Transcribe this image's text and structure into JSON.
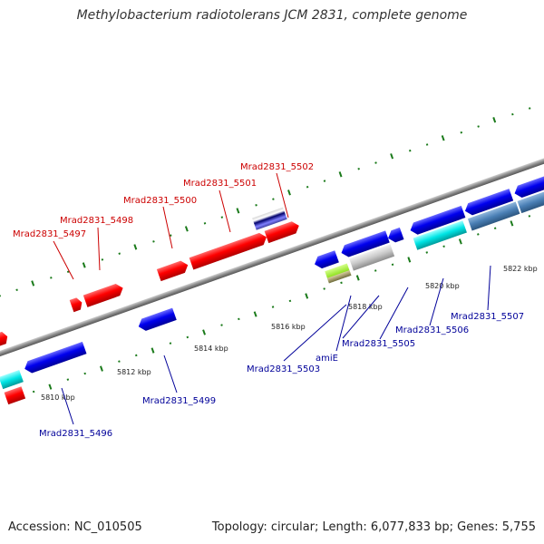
{
  "header": {
    "title": "Methylobacterium radiotolerans JCM 2831, complete genome"
  },
  "footer": {
    "accession": "Accession: NC_010505",
    "stats": "Topology: circular; Length: 6,077,833 bp; Genes: 5,755"
  },
  "colors": {
    "background": "#ffffff",
    "backbone": "#888888",
    "forward_gene": "#ff0000",
    "reverse_gene": "#0000ee",
    "forward_label": "#cc0000",
    "reverse_label": "#000099",
    "tick": "#1a7a1a",
    "cyan_gene": "#00e5e5",
    "steelblue_gene": "#4a7fb5",
    "gray_gene": "#c8c8c8",
    "green_gene": "#99e62e",
    "tan_gene": "#a8a070"
  },
  "ruler": {
    "unit_label": "kbp",
    "ticks": [
      "5810 kbp",
      "5812 kbp",
      "5814 kbp",
      "5816 kbp",
      "5818 kbp",
      "5820 kbp",
      "5822 kbp"
    ]
  },
  "genes": {
    "forward": [
      {
        "id": "Mrad2831_5497",
        "label": "Mrad2831_5497"
      },
      {
        "id": "Mrad2831_5498",
        "label": "Mrad2831_5498"
      },
      {
        "id": "Mrad2831_5500",
        "label": "Mrad2831_5500"
      },
      {
        "id": "Mrad2831_5501",
        "label": "Mrad2831_5501"
      },
      {
        "id": "Mrad2831_5502",
        "label": "Mrad2831_5502"
      }
    ],
    "reverse": [
      {
        "id": "Mrad2831_5496",
        "label": "Mrad2831_5496"
      },
      {
        "id": "Mrad2831_5499",
        "label": "Mrad2831_5499"
      },
      {
        "id": "Mrad2831_5503",
        "label": "Mrad2831_5503"
      },
      {
        "id": "amiE",
        "label": "amiE"
      },
      {
        "id": "Mrad2831_5505",
        "label": "Mrad2831_5505"
      },
      {
        "id": "Mrad2831_5506",
        "label": "Mrad2831_5506"
      },
      {
        "id": "Mrad2831_5507",
        "label": "Mrad2831_5507"
      }
    ]
  }
}
